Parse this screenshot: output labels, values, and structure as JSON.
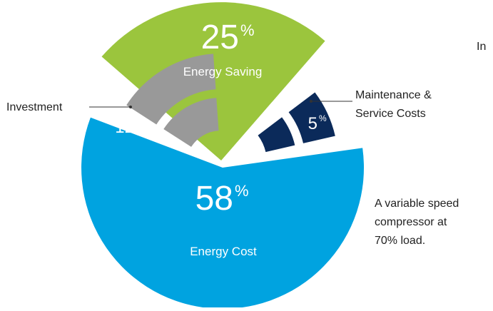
{
  "chart_data": {
    "type": "pie",
    "categories": [
      "Energy Cost",
      "Energy Saving",
      "Investment",
      "Maintenance & Service Costs"
    ],
    "values": [
      58,
      25,
      12,
      5
    ],
    "unit": "%",
    "colors": [
      "#00a3e0",
      "#9bc53d",
      "#999999",
      "#0b2a5a"
    ],
    "labels": {
      "energy_cost": {
        "value": "58",
        "unit": "%",
        "name": "Energy Cost"
      },
      "energy_saving": {
        "value": "25",
        "unit": "%",
        "name": "Energy Saving"
      },
      "investment": {
        "value": "12",
        "unit": "%",
        "name": "Investment"
      },
      "maintenance": {
        "value": "5",
        "unit": "%",
        "name_line1": "Maintenance &",
        "name_line2": "Service Costs"
      }
    },
    "annotation": [
      "A variable speed",
      "compressor at",
      "70% load."
    ],
    "corner_text": "In"
  }
}
